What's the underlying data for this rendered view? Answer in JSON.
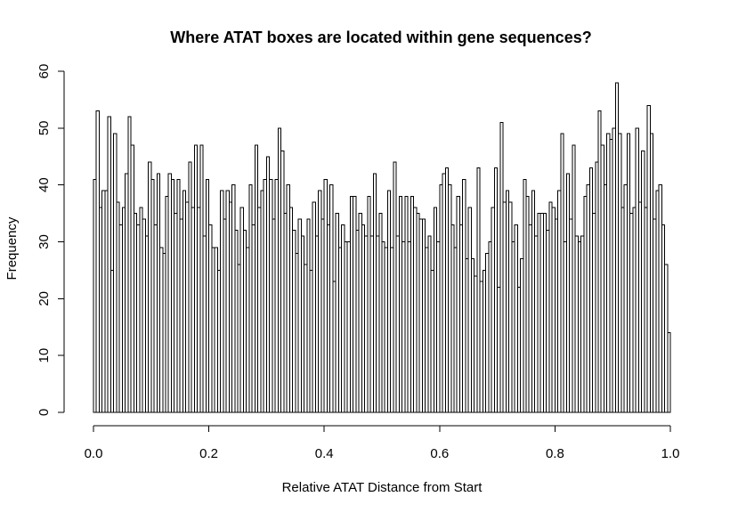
{
  "chart_data": {
    "type": "bar",
    "title": "Where ATAT boxes are located within gene sequences?",
    "xlabel": "Relative ATAT Distance from Start",
    "ylabel": "Frequency",
    "xlim": [
      0,
      1
    ],
    "ylim": [
      0,
      60
    ],
    "x_ticks": [
      "0.0",
      "0.2",
      "0.4",
      "0.6",
      "0.8",
      "1.0"
    ],
    "y_ticks": [
      "0",
      "10",
      "20",
      "30",
      "40",
      "50",
      "60"
    ],
    "bin_width": 0.005,
    "grid": false,
    "colors": {
      "bar_fill": "#ffffff",
      "bar_stroke": "#000000"
    },
    "values": [
      41,
      53,
      36,
      39,
      39,
      52,
      25,
      49,
      37,
      33,
      36,
      42,
      52,
      47,
      35,
      33,
      36,
      34,
      31,
      44,
      41,
      33,
      42,
      29,
      28,
      38,
      42,
      41,
      35,
      41,
      34,
      39,
      37,
      44,
      36,
      47,
      36,
      47,
      31,
      41,
      33,
      29,
      29,
      25,
      39,
      34,
      39,
      37,
      40,
      32,
      26,
      36,
      32,
      29,
      40,
      33,
      47,
      36,
      39,
      41,
      45,
      41,
      34,
      41,
      50,
      46,
      35,
      40,
      36,
      32,
      28,
      34,
      31,
      26,
      34,
      25,
      37,
      31,
      39,
      34,
      41,
      33,
      40,
      23,
      35,
      29,
      33,
      30,
      30,
      38,
      38,
      32,
      35,
      33,
      31,
      38,
      31,
      42,
      31,
      35,
      30,
      29,
      39,
      29,
      44,
      31,
      38,
      30,
      38,
      30,
      38,
      36,
      35,
      34,
      34,
      29,
      31,
      25,
      36,
      30,
      40,
      42,
      43,
      40,
      33,
      29,
      38,
      33,
      41,
      27,
      36,
      27,
      24,
      43,
      23,
      25,
      28,
      30,
      36,
      43,
      22,
      51,
      37,
      39,
      37,
      30,
      33,
      22,
      27,
      41,
      38,
      33,
      39,
      31,
      35,
      35,
      35,
      32,
      37,
      36,
      34,
      39,
      49,
      30,
      42,
      34,
      47,
      31,
      30,
      31,
      38,
      40,
      43,
      35,
      44,
      53,
      47,
      40,
      49,
      48,
      50,
      58,
      49,
      36,
      40,
      49,
      35,
      36,
      50,
      37,
      46,
      36,
      54,
      49,
      34,
      39,
      40,
      33,
      26,
      14
    ]
  }
}
